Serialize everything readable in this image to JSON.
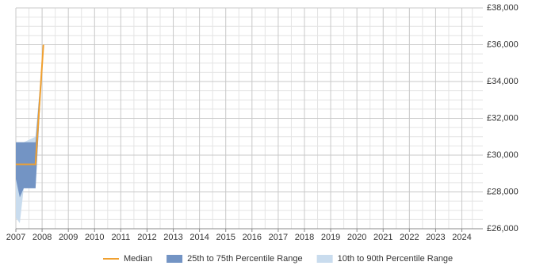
{
  "chart_data": {
    "type": "line",
    "x": [
      2007,
      2007.15,
      2007.3,
      2007.75,
      2008.05
    ],
    "series": [
      {
        "name": "Median",
        "color": "#f0a030",
        "values": [
          29500,
          29500,
          29500,
          29500,
          36000
        ]
      }
    ],
    "bands": [
      {
        "name": "10th to 90th Percentile Range",
        "color": "#c9dcee",
        "lower": [
          26600,
          26300,
          28200,
          28200,
          36000
        ],
        "upper": [
          30700,
          30700,
          30700,
          31000,
          36000
        ]
      },
      {
        "name": "25th to 75th Percentile Range",
        "color": "#7394c4",
        "lower": [
          28700,
          27700,
          28200,
          28200,
          36000
        ],
        "upper": [
          30700,
          30700,
          30700,
          30700,
          36000
        ]
      }
    ],
    "legend_order": [
      0,
      1,
      0
    ],
    "xlim": [
      2007,
      2024.8
    ],
    "xticks": [
      2007,
      2008,
      2009,
      2010,
      2011,
      2012,
      2013,
      2014,
      2015,
      2016,
      2017,
      2018,
      2019,
      2020,
      2021,
      2022,
      2023,
      2024
    ],
    "ylim": [
      26000,
      38000
    ],
    "yticks": [
      {
        "value": 26000,
        "label": "£26,000"
      },
      {
        "value": 28000,
        "label": "£28,000"
      },
      {
        "value": 30000,
        "label": "£30,000"
      },
      {
        "value": 32000,
        "label": "£32,000"
      },
      {
        "value": 34000,
        "label": "£34,000"
      },
      {
        "value": 36000,
        "label": "£36,000"
      },
      {
        "value": 38000,
        "label": "£38,000"
      }
    ],
    "grid": true
  }
}
